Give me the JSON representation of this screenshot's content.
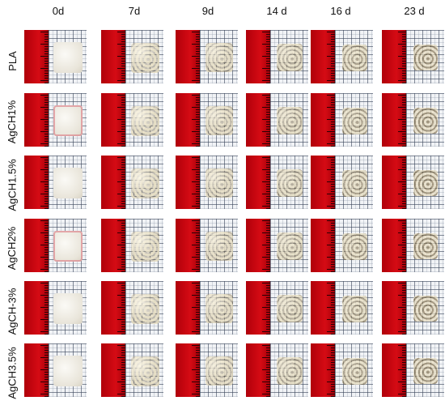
{
  "columns": [
    "0d",
    "7d",
    "9d",
    "14 d",
    "16 d",
    "23 d"
  ],
  "rows": [
    "PLA",
    "AgCH1%",
    "AgCH1.5%",
    "AgCH2%",
    "AgCH-3%",
    "AgCH3.5%"
  ],
  "colors": {
    "ruler_red": "#d50b14",
    "grid": "#3c465a",
    "film_white": "#ece9df",
    "film_degraded": "#cbbd8f"
  }
}
